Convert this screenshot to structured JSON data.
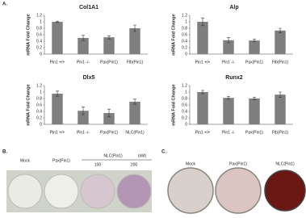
{
  "panel_labels": {
    "a": "A.",
    "b": "B.",
    "c": "C."
  },
  "chart_data": [
    {
      "type": "bar",
      "title": "Col1A1",
      "y_label": "mRNA Fold Change",
      "categories": [
        "Pin1 +/+",
        "Pin1 -/-",
        "Pax(Pin1)",
        "Flb(Pin1)"
      ],
      "values": [
        1.0,
        0.5,
        0.52,
        0.8
      ],
      "errors": [
        0.02,
        0.08,
        0.05,
        0.1
      ],
      "color": "#7f7f7f",
      "ylim": [
        0,
        1.2
      ],
      "yticks": [
        0,
        0.2,
        0.4,
        0.6,
        0.8,
        1,
        1.2
      ],
      "grid": false
    },
    {
      "type": "bar",
      "title": "Alp",
      "y_label": "mRNA Fold Change",
      "categories": [
        "Pin1 +/+",
        "Pin1 -/-",
        "Pax(Pin1)",
        "Flb(Pin1)"
      ],
      "values": [
        1.0,
        0.43,
        0.42,
        0.73
      ],
      "errors": [
        0.12,
        0.08,
        0.04,
        0.07
      ],
      "color": "#7f7f7f",
      "ylim": [
        0,
        1.2
      ],
      "yticks": [
        0,
        0.2,
        0.4,
        0.6,
        0.8,
        1,
        1.2
      ],
      "grid": false
    },
    {
      "type": "bar",
      "title": "Dlx5",
      "y_label": "mRNA Fold Change",
      "categories": [
        "Pin1 +/+",
        "Pin1 -/-",
        "Pax(Pin1)",
        "NLC(Pin1)"
      ],
      "values": [
        0.95,
        0.42,
        0.35,
        0.7
      ],
      "errors": [
        0.08,
        0.12,
        0.12,
        0.08
      ],
      "color": "#7f7f7f",
      "ylim": [
        0,
        1.2
      ],
      "yticks": [
        0,
        0.2,
        0.4,
        0.6,
        0.8,
        1,
        1.2
      ],
      "grid": false
    },
    {
      "type": "bar",
      "title": "Runx2",
      "y_label": "mRNA Fold Change",
      "categories": [
        "Pin1 +/+",
        "Pin1 -/-",
        "Pax(Pin1)",
        "Flb(Pin1)"
      ],
      "values": [
        1.0,
        0.82,
        0.8,
        0.92
      ],
      "errors": [
        0.05,
        0.04,
        0.04,
        0.08
      ],
      "color": "#7f7f7f",
      "ylim": [
        0,
        1.2
      ],
      "yticks": [
        0,
        0.2,
        0.4,
        0.6,
        0.8,
        1,
        1.2
      ],
      "grid": false
    }
  ],
  "panel_b": {
    "labels": [
      "Mock",
      "Pax(Pin1)",
      "NLC(Pin1)"
    ],
    "unit": "(nM)",
    "doses": [
      100,
      200
    ]
  },
  "panel_c": {
    "labels": [
      "Mock",
      "Pax(Pin1)",
      "NLC(Pin1)"
    ]
  }
}
